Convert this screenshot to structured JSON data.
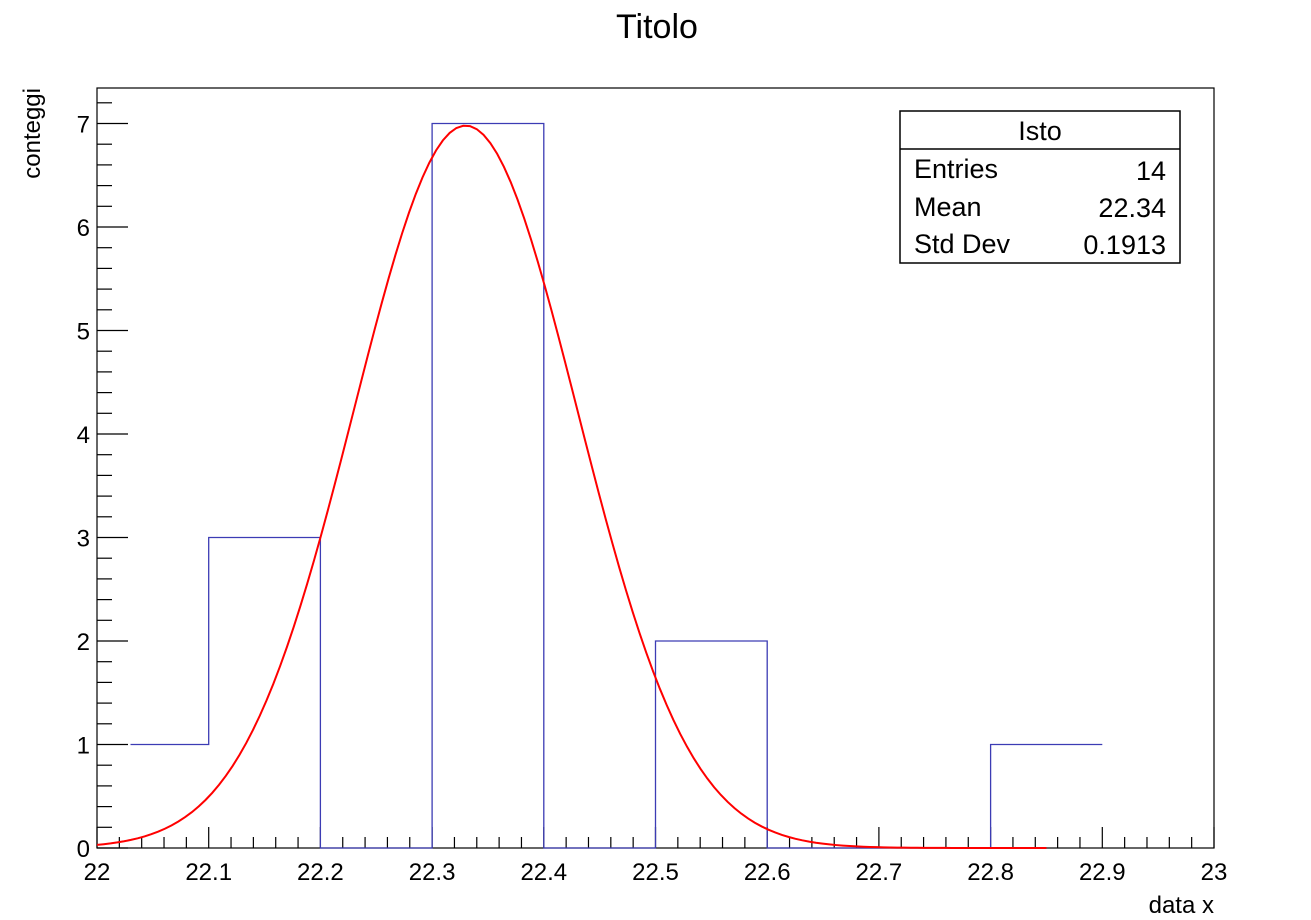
{
  "chart_data": {
    "type": "bar",
    "title": "Titolo",
    "xlabel": "data x",
    "ylabel": "conteggi",
    "xlim": [
      22,
      23
    ],
    "ylim": [
      0,
      7.35
    ],
    "x_ticks": [
      "22",
      "22.1",
      "22.2",
      "22.3",
      "22.4",
      "22.5",
      "22.6",
      "22.7",
      "22.8",
      "22.9",
      "23"
    ],
    "y_ticks": [
      "0",
      "1",
      "2",
      "3",
      "4",
      "5",
      "6",
      "7"
    ],
    "histogram": {
      "name": "Isto",
      "color": "#3c3cb4",
      "bins": [
        {
          "low": 22.03,
          "high": 22.1,
          "count": 1
        },
        {
          "low": 22.1,
          "high": 22.2,
          "count": 3
        },
        {
          "low": 22.2,
          "high": 22.3,
          "count": 0
        },
        {
          "low": 22.3,
          "high": 22.4,
          "count": 7
        },
        {
          "low": 22.4,
          "high": 22.5,
          "count": 0
        },
        {
          "low": 22.5,
          "high": 22.6,
          "count": 2
        },
        {
          "low": 22.6,
          "high": 22.7,
          "count": 0
        },
        {
          "low": 22.7,
          "high": 22.8,
          "count": 0
        },
        {
          "low": 22.8,
          "high": 22.9,
          "count": 1
        }
      ]
    },
    "fit": {
      "type": "gaus",
      "color": "#ff0000",
      "amplitude": 6.98,
      "mean": 22.33,
      "sigma": 0.1,
      "x_range": [
        22.0,
        22.85
      ]
    },
    "stats_box": {
      "title": "Isto",
      "legend_position": "top-right",
      "rows": [
        {
          "label": "Entries",
          "value": "14"
        },
        {
          "label": "Mean",
          "value": "22.34"
        },
        {
          "label": "Std Dev",
          "value": "0.1913"
        }
      ]
    }
  }
}
